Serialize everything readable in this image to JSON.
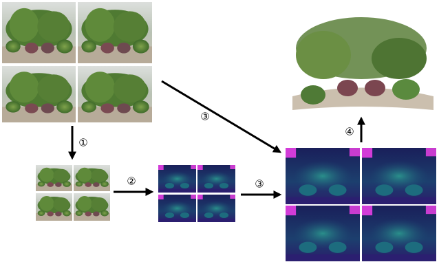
{
  "labels": [
    "①",
    "②",
    "③",
    "③",
    "④"
  ]
}
